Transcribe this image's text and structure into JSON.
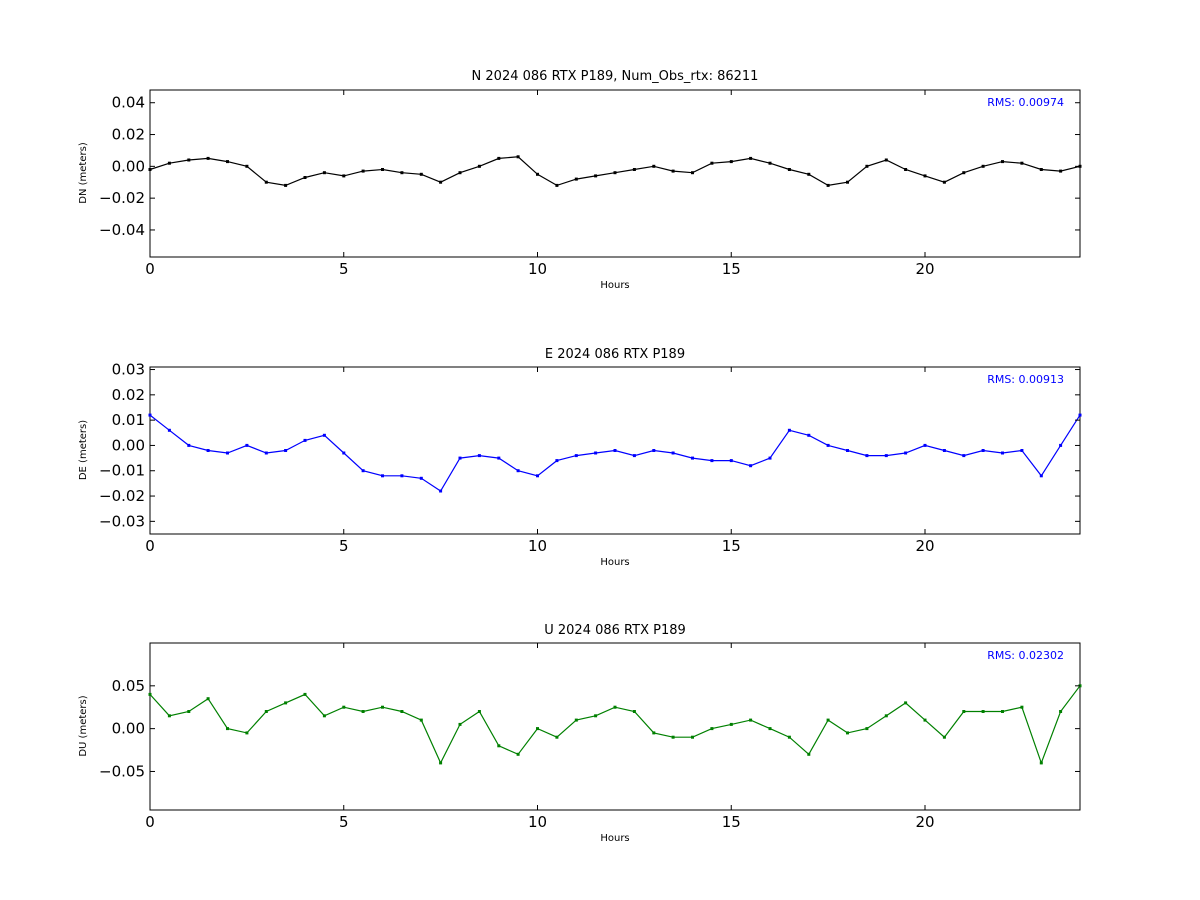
{
  "chart_data": [
    {
      "type": "scatter",
      "title": "N 2024 086 RTX  P189, Num_Obs_rtx: 86211",
      "xlabel": "Hours",
      "ylabel": "DN (meters)",
      "xlim": [
        0,
        24
      ],
      "ylim": [
        -0.057,
        0.048
      ],
      "xticks": [
        0,
        5,
        10,
        15,
        20
      ],
      "yticks": [
        -0.04,
        -0.02,
        0.0,
        0.02,
        0.04
      ],
      "ytick_labels": [
        "−0.04",
        "−0.02",
        "0.00",
        "0.02",
        "0.04"
      ],
      "color": "#000000",
      "annotation": "RMS:  0.00974",
      "grid": false,
      "series": [
        {
          "x": [
            0,
            0.5,
            1,
            1.5,
            2,
            2.5,
            3,
            3.5,
            4,
            4.5,
            5,
            5.5,
            6,
            6.5,
            7,
            7.5,
            8,
            8.5,
            9,
            9.5,
            10,
            10.5,
            11,
            11.5,
            12,
            12.5,
            13,
            13.5,
            14,
            14.5,
            15,
            15.5,
            16,
            16.5,
            17,
            17.5,
            18,
            18.5,
            19,
            19.5,
            20,
            20.5,
            21,
            21.5,
            22,
            22.5,
            23,
            23.5,
            24
          ],
          "y": [
            -0.002,
            0.002,
            0.004,
            0.005,
            0.003,
            0.0,
            -0.01,
            -0.012,
            -0.007,
            -0.004,
            -0.006,
            -0.003,
            -0.002,
            -0.004,
            -0.005,
            -0.01,
            -0.004,
            0.0,
            0.005,
            0.006,
            -0.005,
            -0.012,
            -0.008,
            -0.006,
            -0.004,
            -0.002,
            0.0,
            -0.003,
            -0.004,
            0.002,
            0.003,
            0.005,
            0.002,
            -0.002,
            -0.005,
            -0.012,
            -0.01,
            0.0,
            0.004,
            -0.002,
            -0.006,
            -0.01,
            -0.004,
            0.0,
            0.003,
            0.002,
            -0.002,
            -0.003,
            0.0
          ]
        }
      ]
    },
    {
      "type": "scatter",
      "title": "E 2024 086 RTX  P189",
      "xlabel": "Hours",
      "ylabel": "DE (meters)",
      "xlim": [
        0,
        24
      ],
      "ylim": [
        -0.035,
        0.031
      ],
      "xticks": [
        0,
        5,
        10,
        15,
        20
      ],
      "yticks": [
        -0.03,
        -0.02,
        -0.01,
        0.0,
        0.01,
        0.02,
        0.03
      ],
      "ytick_labels": [
        "−0.03",
        "−0.02",
        "−0.01",
        "0.00",
        "0.01",
        "0.02",
        "0.03"
      ],
      "color": "#0000ff",
      "annotation": "RMS:  0.00913",
      "grid": false,
      "series": [
        {
          "x": [
            0,
            0.5,
            1,
            1.5,
            2,
            2.5,
            3,
            3.5,
            4,
            4.5,
            5,
            5.5,
            6,
            6.5,
            7,
            7.5,
            8,
            8.5,
            9,
            9.5,
            10,
            10.5,
            11,
            11.5,
            12,
            12.5,
            13,
            13.5,
            14,
            14.5,
            15,
            15.5,
            16,
            16.5,
            17,
            17.5,
            18,
            18.5,
            19,
            19.5,
            20,
            20.5,
            21,
            21.5,
            22,
            22.5,
            23,
            23.5,
            24
          ],
          "y": [
            0.012,
            0.006,
            0.0,
            -0.002,
            -0.003,
            0.0,
            -0.003,
            -0.002,
            0.002,
            0.004,
            -0.003,
            -0.01,
            -0.012,
            -0.012,
            -0.013,
            -0.018,
            -0.005,
            -0.004,
            -0.005,
            -0.01,
            -0.012,
            -0.006,
            -0.004,
            -0.003,
            -0.002,
            -0.004,
            -0.002,
            -0.003,
            -0.005,
            -0.006,
            -0.006,
            -0.008,
            -0.005,
            0.006,
            0.004,
            0.0,
            -0.002,
            -0.004,
            -0.004,
            -0.003,
            0.0,
            -0.002,
            -0.004,
            -0.002,
            -0.003,
            -0.002,
            -0.012,
            0.0,
            0.012
          ]
        }
      ]
    },
    {
      "type": "scatter",
      "title": "U 2024 086 RTX  P189",
      "xlabel": "Hours",
      "ylabel": "DU (meters)",
      "xlim": [
        0,
        24
      ],
      "ylim": [
        -0.095,
        0.1
      ],
      "xticks": [
        0,
        5,
        10,
        15,
        20
      ],
      "yticks": [
        -0.05,
        0.0,
        0.05
      ],
      "ytick_labels": [
        "−0.05",
        "0.00",
        "0.05"
      ],
      "color": "#008000",
      "annotation": "RMS:  0.02302",
      "grid": false,
      "series": [
        {
          "x": [
            0,
            0.5,
            1,
            1.5,
            2,
            2.5,
            3,
            3.5,
            4,
            4.5,
            5,
            5.5,
            6,
            6.5,
            7,
            7.5,
            8,
            8.5,
            9,
            9.5,
            10,
            10.5,
            11,
            11.5,
            12,
            12.5,
            13,
            13.5,
            14,
            14.5,
            15,
            15.5,
            16,
            16.5,
            17,
            17.5,
            18,
            18.5,
            19,
            19.5,
            20,
            20.5,
            21,
            21.5,
            22,
            22.5,
            23,
            23.5,
            24
          ],
          "y": [
            0.04,
            0.015,
            0.02,
            0.035,
            0.0,
            -0.005,
            0.02,
            0.03,
            0.04,
            0.015,
            0.025,
            0.02,
            0.025,
            0.02,
            0.01,
            -0.04,
            0.005,
            0.02,
            -0.02,
            -0.03,
            0.0,
            -0.01,
            0.01,
            0.015,
            0.025,
            0.02,
            -0.005,
            -0.01,
            -0.01,
            0.0,
            0.005,
            0.01,
            0.0,
            -0.01,
            -0.03,
            0.01,
            -0.005,
            0.0,
            0.015,
            0.03,
            0.01,
            -0.01,
            0.02,
            0.02,
            0.02,
            0.025,
            -0.04,
            0.02,
            0.05
          ]
        }
      ]
    }
  ]
}
